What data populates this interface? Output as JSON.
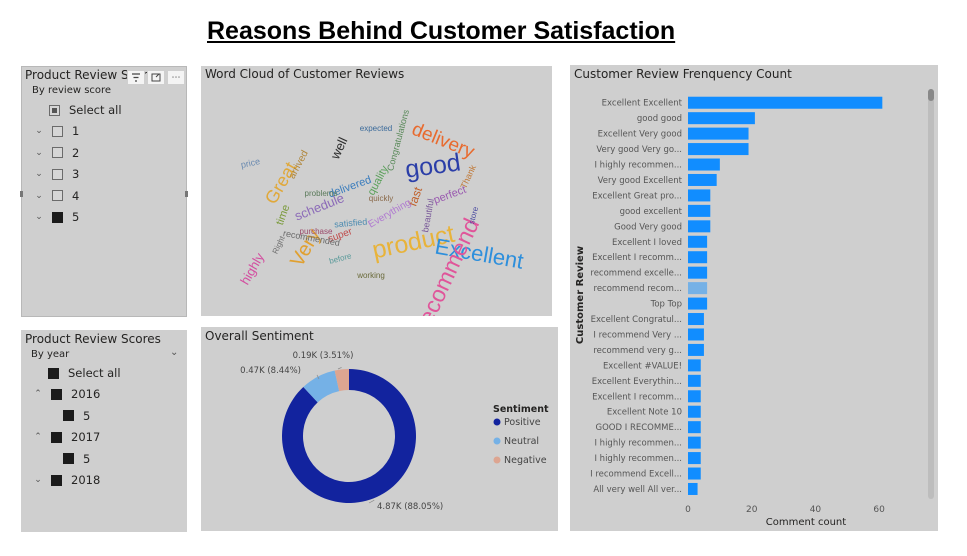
{
  "report": {
    "title": "Reasons Behind Customer Satisfaction"
  },
  "slicer_review_score": {
    "title": "Product Review Scores",
    "subtitle": "By review score",
    "select_all": "Select all",
    "items": [
      {
        "label": "1",
        "state": "empty"
      },
      {
        "label": "2",
        "state": "empty"
      },
      {
        "label": "3",
        "state": "empty"
      },
      {
        "label": "4",
        "state": "empty"
      },
      {
        "label": "5",
        "state": "filled"
      }
    ]
  },
  "slicer_year": {
    "title": "Product Review Scores",
    "subtitle": "By year",
    "select_all": "Select all",
    "years": [
      {
        "year": "2016",
        "child": "5"
      },
      {
        "year": "2017",
        "child": "5"
      },
      {
        "year": "2018",
        "child": null
      }
    ]
  },
  "word_cloud": {
    "title": "Word Cloud of Customer Reviews",
    "words": [
      {
        "text": "product",
        "color": "#e8b33a"
      },
      {
        "text": "Excellent",
        "color": "#2d8fdc"
      },
      {
        "text": "recommend",
        "color": "#e0559a"
      },
      {
        "text": "good",
        "color": "#2b3ea8"
      },
      {
        "text": "Very",
        "color": "#e0a030"
      },
      {
        "text": "delivery",
        "color": "#e86a2e"
      },
      {
        "text": "highly",
        "color": "#d34ea0"
      },
      {
        "text": "Great",
        "color": "#e0a83a"
      },
      {
        "text": "quality",
        "color": "#5aa05a"
      },
      {
        "text": "schedule",
        "color": "#8c6bb8"
      },
      {
        "text": "delivered",
        "color": "#3b7dbd"
      },
      {
        "text": "super",
        "color": "#c05050"
      },
      {
        "text": "recommended",
        "color": "#6a6a6a"
      },
      {
        "text": "time",
        "color": "#7a9a3a"
      },
      {
        "text": "satisfied",
        "color": "#4a8ab0"
      },
      {
        "text": "well",
        "color": "#2f2f2f"
      },
      {
        "text": "fast",
        "color": "#c0602a"
      },
      {
        "text": "perfect",
        "color": "#9a5ab0"
      },
      {
        "text": "Everything",
        "color": "#b07ad0"
      },
      {
        "text": "arrived",
        "color": "#b0863a"
      },
      {
        "text": "price",
        "color": "#6a8ab0"
      },
      {
        "text": "quickly",
        "color": "#8a6a4a"
      },
      {
        "text": "before",
        "color": "#5a9a9a"
      },
      {
        "text": "Thank",
        "color": "#c07a3a"
      },
      {
        "text": "Right",
        "color": "#707070"
      },
      {
        "text": "expected",
        "color": "#3a6a9a"
      },
      {
        "text": "purchase",
        "color": "#9a4a6a"
      },
      {
        "text": "problems",
        "color": "#5a7a5a"
      },
      {
        "text": "beautiful",
        "color": "#7a5a9a"
      },
      {
        "text": "working",
        "color": "#6a6a3a"
      },
      {
        "text": "Congratulations",
        "color": "#5a8a5a"
      },
      {
        "text": "store",
        "color": "#4a4aa0"
      }
    ]
  },
  "sentiment": {
    "title": "Overall Sentiment",
    "legend_title": "Sentiment",
    "slices": [
      {
        "name": "Positive",
        "value": 4870,
        "label": "4.87K (88.05%)",
        "color": "#12239e"
      },
      {
        "name": "Neutral",
        "value": 470,
        "label": "0.47K (8.44%)",
        "color": "#75b1e6"
      },
      {
        "name": "Negative",
        "value": 190,
        "label": "0.19K (3.51%)",
        "color": "#dda591"
      }
    ]
  },
  "chart_data": {
    "type": "bar",
    "title": "Customer Review Frenquency Count",
    "xlabel": "Comment count",
    "ylabel": "Customer Review",
    "xlim": [
      0,
      70
    ],
    "xticks": [
      0,
      20,
      40,
      60
    ],
    "orientation": "horizontal",
    "categories": [
      "Excellent Excellent",
      "good good",
      "Excellent Very good",
      "Very good Very go...",
      "I highly recommen...",
      "Very good Excellent",
      "Excellent Great pro...",
      "good excellent",
      "Good Very good",
      "Excellent I loved",
      "Excellent I recomm...",
      "recommend excelle...",
      "recommend recom...",
      "Top Top",
      "Excellent Congratul...",
      "I recommend Very ...",
      "recommend very g...",
      "Excellent #VALUE!",
      "Excellent Everythin...",
      "Excellent I recomm...",
      "Excellent Note 10",
      "GOOD I RECOMME...",
      "I highly recommen...",
      "I highly recommen...",
      "I recommend Excell...",
      "All very well All ver..."
    ],
    "values": [
      61,
      21,
      19,
      19,
      10,
      9,
      7,
      7,
      7,
      6,
      6,
      6,
      6,
      6,
      5,
      5,
      5,
      4,
      4,
      4,
      4,
      4,
      4,
      4,
      4,
      3
    ],
    "highlight_index": 12,
    "bar_color": "#118dff",
    "highlight_color": "#75b1e6"
  }
}
